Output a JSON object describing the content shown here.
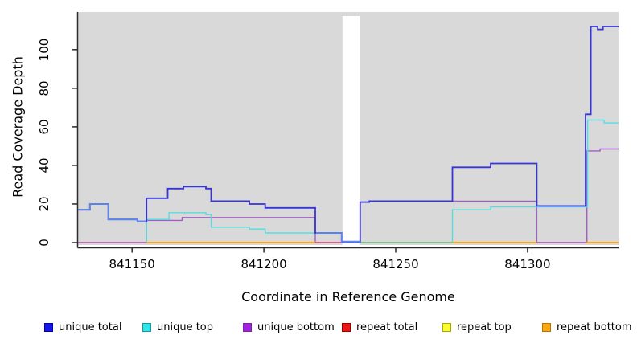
{
  "figure": {
    "xlabel": "Coordinate in Reference Genome",
    "ylabel": "Read Coverage Depth"
  },
  "chart_data": {
    "type": "line",
    "subtype": "step-after",
    "title": "",
    "xlabel": "Coordinate in Reference Genome",
    "ylabel": "Read Coverage Depth",
    "x_domain": [
      841129.5,
      841334.5
    ],
    "y_domain": [
      0,
      119.5
    ],
    "x_ticks": [
      841150,
      841200,
      841250,
      841300
    ],
    "y_ticks": [
      0,
      20,
      40,
      60,
      80,
      100
    ],
    "grid": false,
    "legend_position": "bottom",
    "panel_bg": "#d9d9d9",
    "gap_band": {
      "x1": 841229.8,
      "x2": 841236.3,
      "color": "#ffffff"
    },
    "series": [
      {
        "name": "unique total",
        "color": "#3734d9",
        "light_color": "#5b87ec",
        "light_ranges": [
          [
            841129.5,
            841155.2
          ],
          [
            841219.8,
            841236.3
          ]
        ],
        "steps": [
          [
            841129.5,
            17
          ],
          [
            841134,
            20
          ],
          [
            841141,
            12
          ],
          [
            841152,
            11
          ],
          [
            841155.5,
            23
          ],
          [
            841163.5,
            28
          ],
          [
            841169.5,
            29
          ],
          [
            841178,
            28
          ],
          [
            841180,
            21.5
          ],
          [
            841194.5,
            20
          ],
          [
            841200.5,
            18
          ],
          [
            841219.5,
            5
          ],
          [
            841229.5,
            0.5
          ],
          [
            841236.5,
            21
          ],
          [
            841240,
            21.5
          ],
          [
            841271.5,
            39
          ],
          [
            841286,
            41
          ],
          [
            841303.5,
            19
          ],
          [
            841322,
            66.5
          ],
          [
            841324,
            112
          ],
          [
            841326.6,
            110.5
          ],
          [
            841328.6,
            112
          ]
        ]
      },
      {
        "name": "unique top",
        "color": "#55dde2",
        "steps": [
          [
            841129.5,
            0
          ],
          [
            841155.5,
            12
          ],
          [
            841164,
            15.5
          ],
          [
            841178,
            14.5
          ],
          [
            841180,
            8
          ],
          [
            841194.5,
            7
          ],
          [
            841200.5,
            5
          ],
          [
            841229.5,
            0
          ],
          [
            841271.5,
            17
          ],
          [
            841286,
            18.5
          ],
          [
            841322.8,
            63.5
          ],
          [
            841329,
            62
          ]
        ]
      },
      {
        "name": "unique bottom",
        "color": "#a55bcd",
        "steps": [
          [
            841129.5,
            0
          ],
          [
            841155.5,
            11.5
          ],
          [
            841169,
            13
          ],
          [
            841219.5,
            0
          ],
          [
            841236.5,
            21
          ],
          [
            841240,
            21.5
          ],
          [
            841303.5,
            0
          ],
          [
            841322.5,
            47.5
          ],
          [
            841327.5,
            48.5
          ]
        ]
      },
      {
        "name": "repeat total",
        "color": "#ee1515",
        "steps": [
          [
            841129.5,
            0
          ]
        ]
      },
      {
        "name": "repeat top",
        "color": "#fbfb2e",
        "steps": [
          [
            841129.5,
            0
          ]
        ]
      },
      {
        "name": "repeat bottom",
        "color": "#ffa510",
        "steps": [
          [
            841129.5,
            0
          ]
        ]
      }
    ],
    "baseline_segments": [
      {
        "x1": 841129.5,
        "x2": 841155.5,
        "color": "#c665b5"
      },
      {
        "x1": 841155.5,
        "x2": 841219.5,
        "color": "#ffa510"
      },
      {
        "x1": 841219.5,
        "x2": 841229.5,
        "color": "#d55f86"
      },
      {
        "x1": 841229.5,
        "x2": 841236.5,
        "color": "#4743cf"
      },
      {
        "x1": 841236.5,
        "x2": 841271.5,
        "color": "#7cc08a"
      },
      {
        "x1": 841271.5,
        "x2": 841303.5,
        "color": "#ffa510"
      },
      {
        "x1": 841303.5,
        "x2": 841322.0,
        "color": "#b168c6"
      },
      {
        "x1": 841322.0,
        "x2": 841334.5,
        "color": "#ffa510"
      }
    ]
  },
  "legend": {
    "items": [
      {
        "label": "unique total",
        "fill": "#1616e8",
        "border": "#0000bb"
      },
      {
        "label": "unique top",
        "fill": "#2ee6ea",
        "border": "#1899a0"
      },
      {
        "label": "unique bottom",
        "fill": "#a021e0",
        "border": "#7724a8"
      },
      {
        "label": "repeat total",
        "fill": "#ee1515",
        "border": "#990000"
      },
      {
        "label": "repeat top",
        "fill": "#fbfb2e",
        "border": "#a8a800"
      },
      {
        "label": "repeat bottom",
        "fill": "#ffa510",
        "border": "#b87400"
      }
    ]
  }
}
